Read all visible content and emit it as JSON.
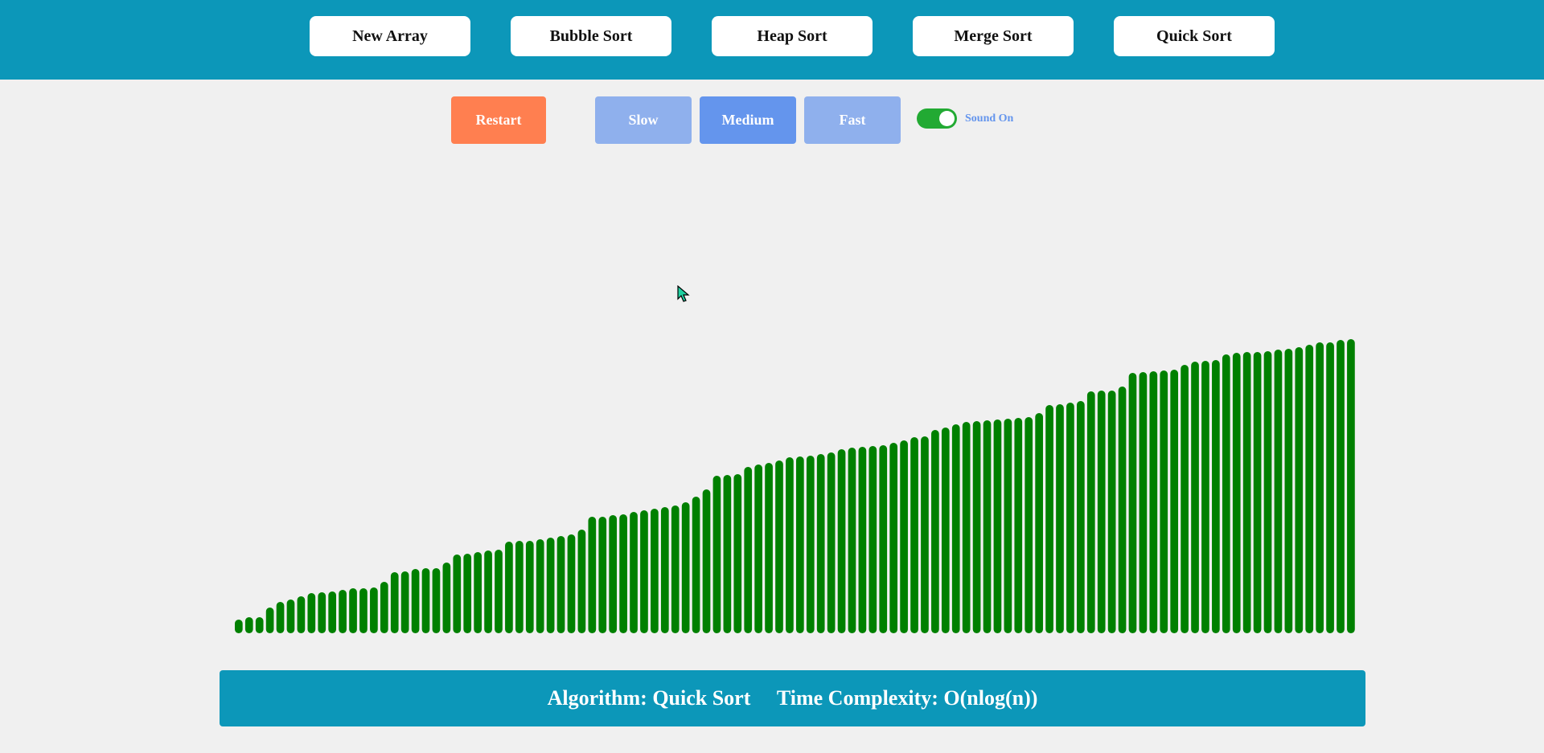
{
  "nav": {
    "new_array": "New Array",
    "bubble_sort": "Bubble Sort",
    "heap_sort": "Heap Sort",
    "merge_sort": "Merge Sort",
    "quick_sort": "Quick Sort"
  },
  "controls": {
    "restart": "Restart",
    "slow": "Slow",
    "medium": "Medium",
    "fast": "Fast",
    "selected_speed": "Medium",
    "sound_label": "Sound On",
    "sound_on": true
  },
  "info": {
    "algorithm_label": "Algorithm: ",
    "algorithm": "Quick Sort",
    "complexity_label": "Time Complexity: ",
    "complexity": "O(nlog(n))"
  },
  "colors": {
    "header_bg": "#0c97b9",
    "bar": "#008000",
    "restart": "#ff7f50",
    "speed_active": "#6495ed",
    "speed_inactive": "#8fb0ed",
    "toggle_on": "#22aa33"
  },
  "chart_data": {
    "type": "bar",
    "values": [
      17,
      20,
      20,
      32,
      39,
      42,
      46,
      50,
      51,
      52,
      54,
      56,
      56,
      57,
      64,
      76,
      77,
      80,
      81,
      81,
      88,
      98,
      99,
      101,
      103,
      104,
      114,
      115,
      115,
      117,
      119,
      121,
      123,
      129,
      145,
      145,
      147,
      148,
      151,
      153,
      155,
      157,
      159,
      163,
      170,
      179,
      196,
      197,
      198,
      207,
      210,
      212,
      215,
      219,
      220,
      221,
      223,
      225,
      229,
      231,
      232,
      233,
      234,
      237,
      240,
      244,
      245,
      253,
      256,
      260,
      263,
      264,
      265,
      266,
      267,
      268,
      269,
      274,
      284,
      285,
      287,
      289,
      301,
      302,
      302,
      307,
      324,
      325,
      326,
      327,
      328,
      334,
      338,
      339,
      340,
      347,
      349,
      350,
      350,
      351,
      353,
      354,
      356,
      359,
      362,
      362,
      365,
      366
    ],
    "sorted": true,
    "ylim": [
      0,
      400
    ]
  }
}
